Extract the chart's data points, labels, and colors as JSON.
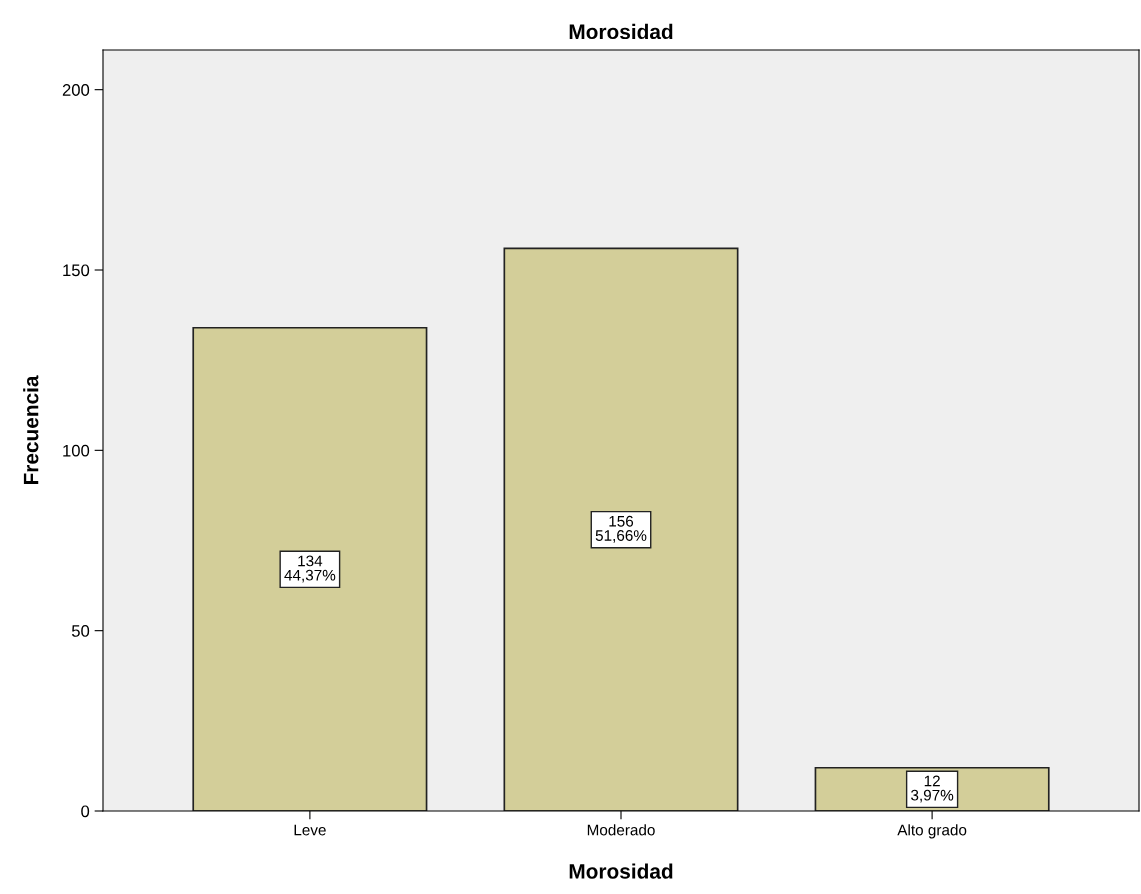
{
  "chart_data": {
    "type": "bar",
    "title": "Morosidad",
    "xlabel": "Morosidad",
    "ylabel": "Frecuencia",
    "categories": [
      "Leve",
      "Moderado",
      "Alto grado"
    ],
    "values": [
      134,
      156,
      12
    ],
    "value_labels": [
      "134\n44,37%",
      "156\n51,66%",
      "12\n3,97%"
    ],
    "color": "#d3ce99",
    "ylim": [
      0,
      211
    ],
    "yticks": [
      0,
      50,
      100,
      150,
      200
    ],
    "grid": false,
    "legend": false
  }
}
